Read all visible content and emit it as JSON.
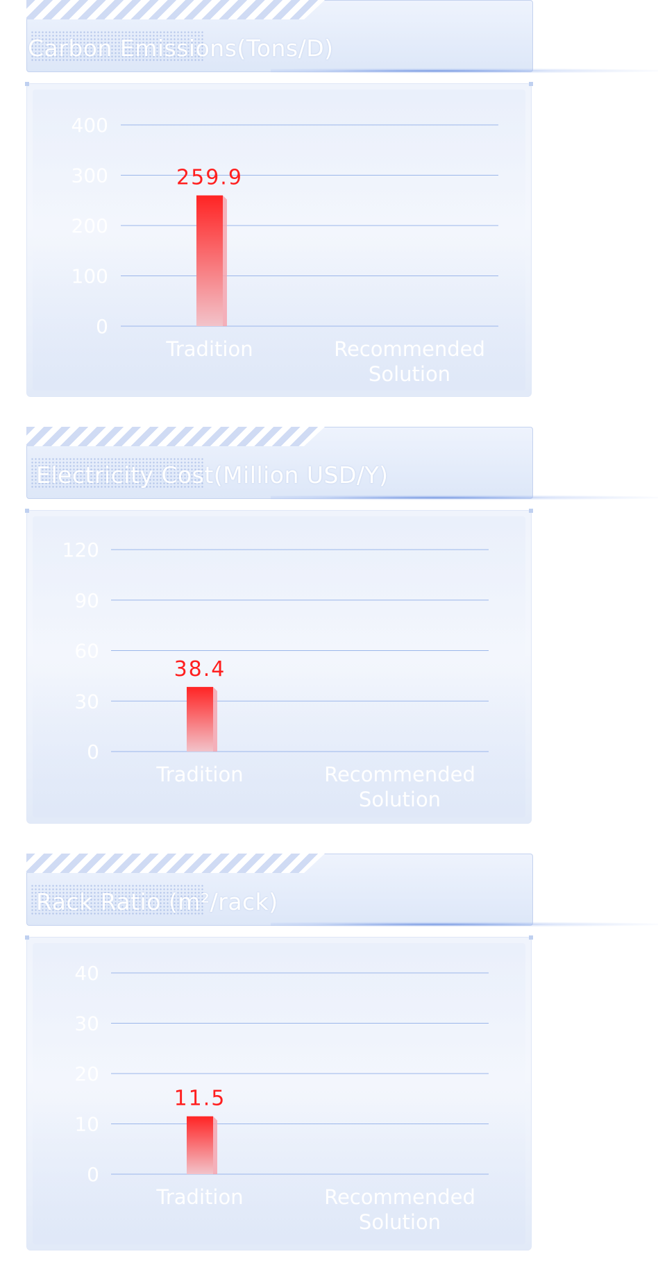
{
  "charts": [
    {
      "title": "Carbon Emissions(Tons/D)"
    },
    {
      "title": "Electricity Cost(Million USD/Y)"
    },
    {
      "title": "Rack Ratio (m²/rack)"
    }
  ],
  "colors": {
    "bar_top": "#ff2424",
    "bar_bottom": "#f2c3ca",
    "grid": "#9bb6ea",
    "value_label": "#ff1f1f",
    "axis_text": "#ffffff"
  },
  "chart_data": [
    {
      "type": "bar",
      "title": "Carbon Emissions(Tons/D)",
      "categories": [
        "Tradition",
        "Recommended\nSolution"
      ],
      "values": [
        259.9,
        null
      ],
      "data_labels": [
        "259.9",
        ""
      ],
      "yticks": [
        0,
        100,
        200,
        300,
        400
      ],
      "ylim": [
        0,
        400
      ],
      "grid": true
    },
    {
      "type": "bar",
      "title": "Electricity Cost(Million USD/Y)",
      "categories": [
        "Tradition",
        "Recommended\nSolution"
      ],
      "values": [
        38.4,
        null
      ],
      "data_labels": [
        "38.4",
        ""
      ],
      "yticks": [
        0,
        30,
        60,
        90,
        120
      ],
      "ylim": [
        0,
        120
      ],
      "grid": true
    },
    {
      "type": "bar",
      "title": "Rack Ratio (m²/rack)",
      "categories": [
        "Tradition",
        "Recommended\nSolution"
      ],
      "values": [
        11.5,
        null
      ],
      "data_labels": [
        "11.5",
        ""
      ],
      "yticks": [
        0,
        10,
        20,
        30,
        40
      ],
      "ylim": [
        0,
        40
      ],
      "grid": true
    }
  ]
}
